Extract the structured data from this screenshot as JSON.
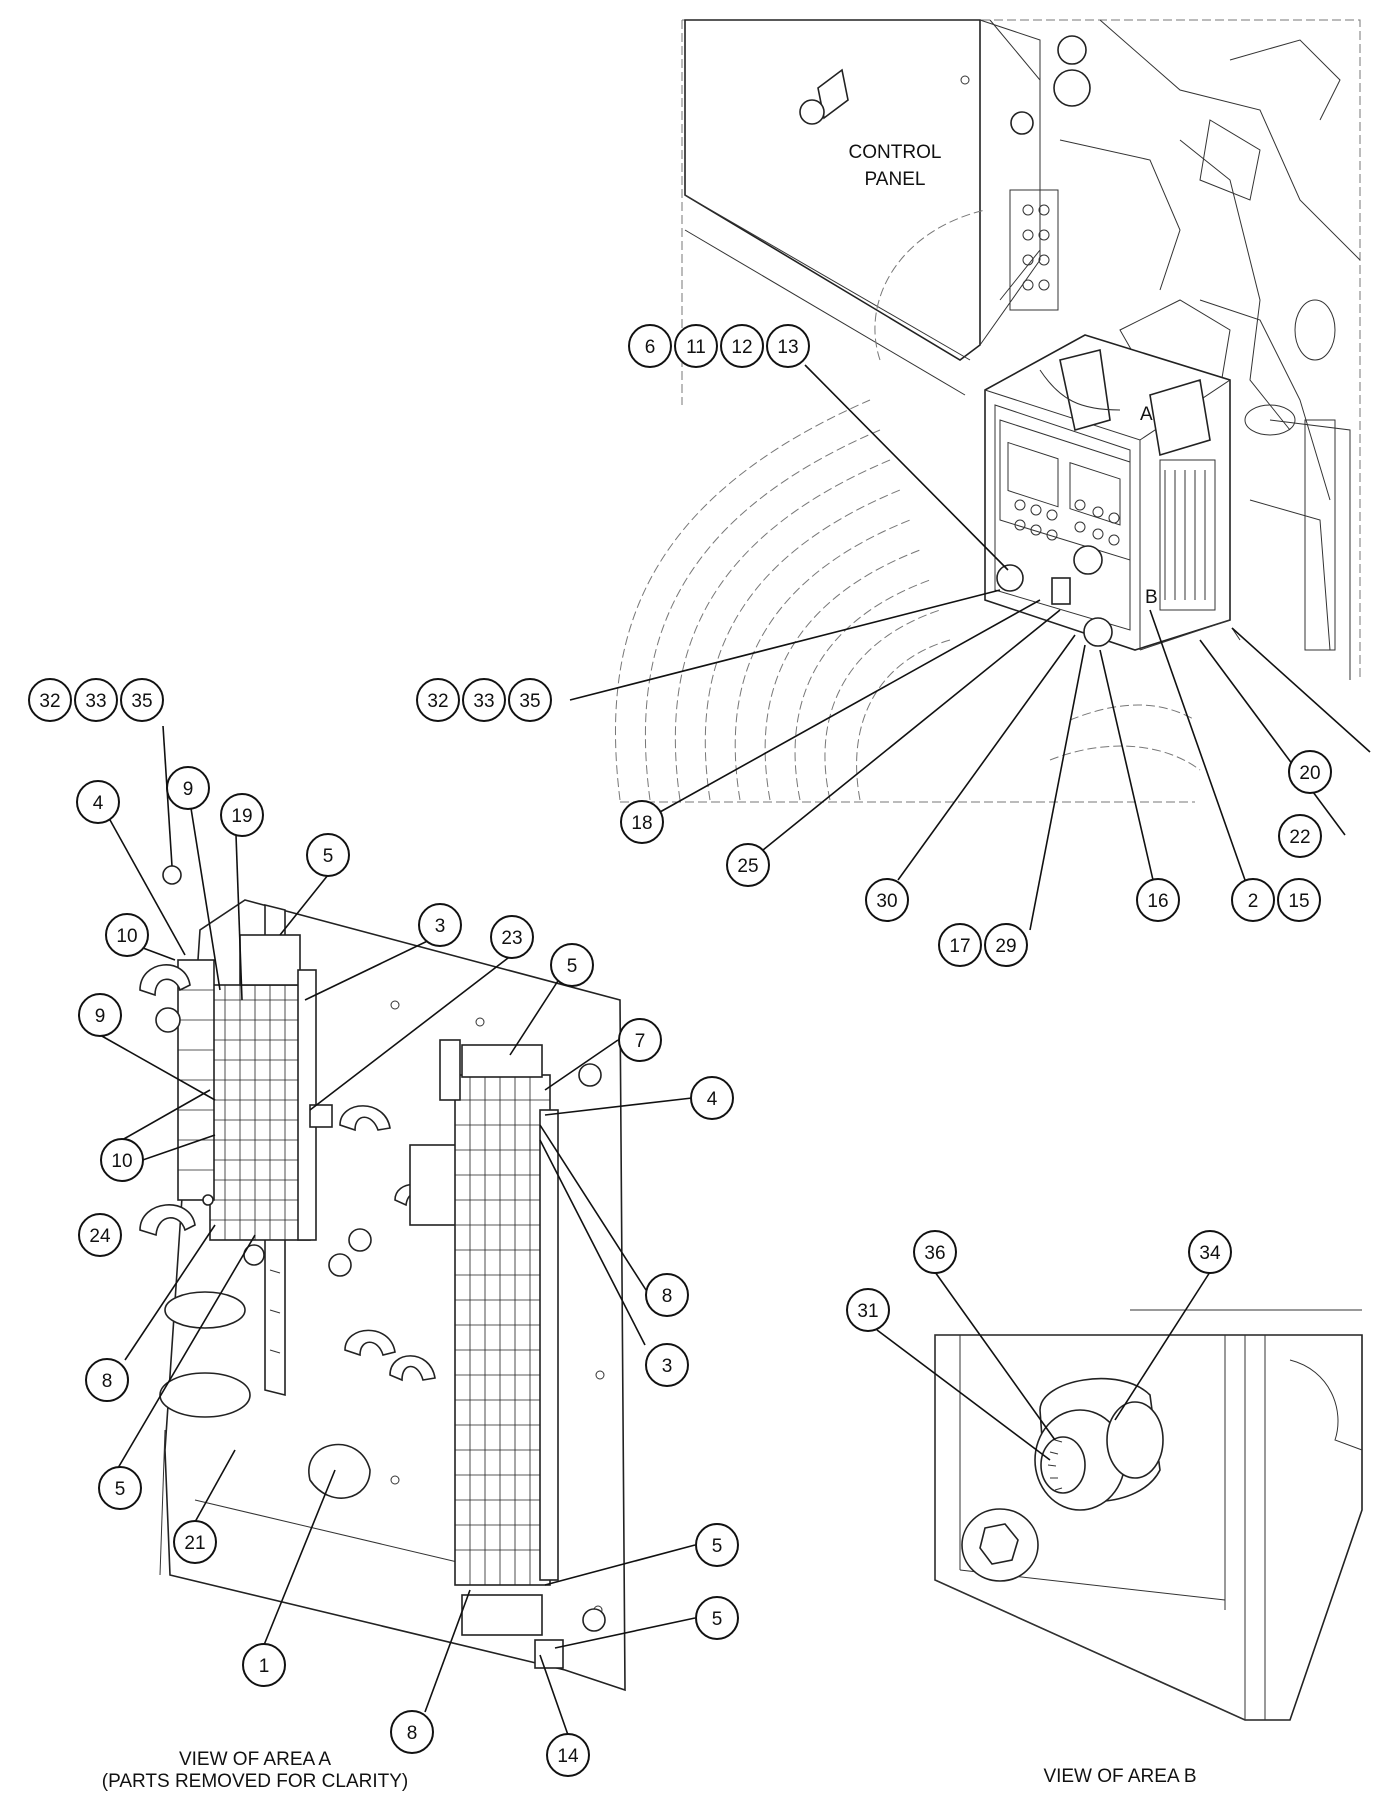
{
  "area_labels": {
    "a": "A",
    "b": "B"
  },
  "control_panel_label": [
    "CONTROL",
    "PANEL"
  ],
  "captions": {
    "view_a_line1": "VIEW OF AREA  A",
    "view_a_line2": "(PARTS REMOVED FOR CLARITY)",
    "view_b": "VIEW OF AREA  B"
  },
  "callouts": {
    "main": [
      "6",
      "11",
      "12",
      "13",
      "32",
      "33",
      "35",
      "18",
      "25",
      "30",
      "17",
      "29",
      "16",
      "2",
      "15",
      "22",
      "20"
    ],
    "view_a": [
      "32",
      "33",
      "35",
      "4",
      "9",
      "19",
      "5",
      "10",
      "9",
      "10",
      "24",
      "8",
      "5",
      "21",
      "1",
      "3",
      "23",
      "5",
      "7",
      "4",
      "8",
      "3",
      "5",
      "5",
      "8",
      "14"
    ],
    "view_b": [
      "36",
      "34",
      "31"
    ]
  }
}
